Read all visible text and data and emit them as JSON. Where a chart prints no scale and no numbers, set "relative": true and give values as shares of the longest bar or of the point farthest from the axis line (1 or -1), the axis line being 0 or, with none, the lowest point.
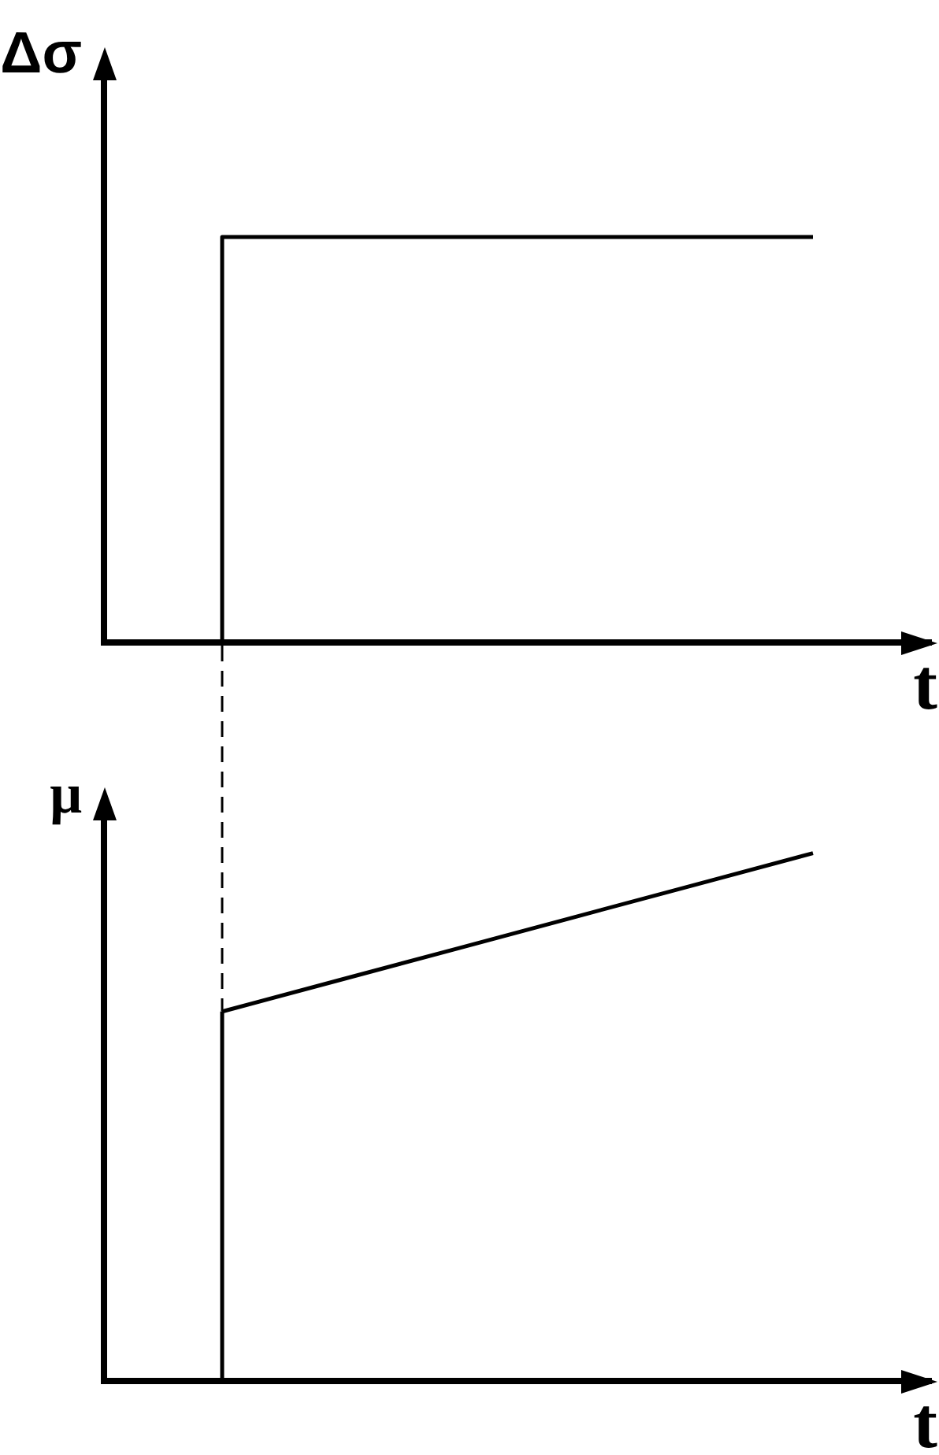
{
  "chart_data": [
    {
      "type": "step",
      "ylabel": "Δσ",
      "xlabel": "t",
      "relative": true,
      "categories": [
        null,
        null,
        null,
        null,
        null,
        null,
        null,
        null
      ],
      "series": [
        {
          "color": "#000000",
          "values": [
            0,
            1,
            1,
            1,
            1,
            1,
            1,
            null
          ]
        }
      ]
    },
    {
      "type": "line",
      "ylabel": "μ",
      "xlabel": "t",
      "relative": true,
      "categories": [
        null,
        null,
        null,
        null,
        null,
        null,
        null,
        null
      ],
      "series": [
        {
          "type": "step",
          "color": "#000000",
          "values": [
            0,
            0.7,
            null,
            null,
            null,
            null,
            null,
            null
          ]
        },
        {
          "color": "#000000",
          "values": [
            null,
            0.7,
            0.76,
            0.82,
            0.88,
            0.94,
            1,
            null
          ]
        }
      ]
    }
  ]
}
